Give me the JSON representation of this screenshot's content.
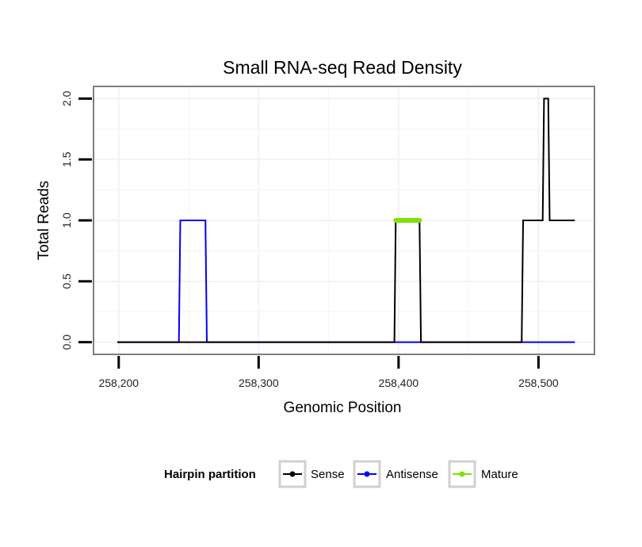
{
  "chart_data": {
    "type": "line",
    "title": "Small RNA-seq Read Density",
    "xlabel": "Genomic Position",
    "ylabel": "Total Reads",
    "xlim": [
      258182,
      258540
    ],
    "ylim": [
      -0.1,
      2.1
    ],
    "x_ticks": [
      258200,
      258300,
      258400,
      258500
    ],
    "x_tick_labels": [
      "258,200",
      "258,300",
      "258,400",
      "258,500"
    ],
    "y_ticks": [
      0,
      0.5,
      1,
      1.5,
      2
    ],
    "y_tick_labels": [
      "0.0",
      "0.5",
      "1.0",
      "1.5",
      "2.0"
    ],
    "grid": true,
    "legend": {
      "title": "Hairpin partition",
      "position": "bottom",
      "entries": [
        "Sense",
        "Antisense",
        "Mature"
      ]
    },
    "series": [
      {
        "name": "Sense",
        "color": "#000000",
        "x": [
          258199,
          258397,
          258398,
          258415,
          258416,
          258488,
          258489,
          258503,
          258504,
          258507,
          258508,
          258526
        ],
        "y": [
          0,
          0,
          1,
          1,
          0,
          0,
          1,
          1,
          2,
          2,
          1,
          1
        ]
      },
      {
        "name": "Antisense",
        "color": "#0000ff",
        "x": [
          258199,
          258243,
          258244,
          258262,
          258263,
          258526
        ],
        "y": [
          0,
          0,
          1,
          1,
          0,
          0
        ]
      },
      {
        "name": "Mature",
        "color": "#7fe00a",
        "x": [
          258398,
          258415
        ],
        "y": [
          1,
          1
        ]
      }
    ]
  }
}
